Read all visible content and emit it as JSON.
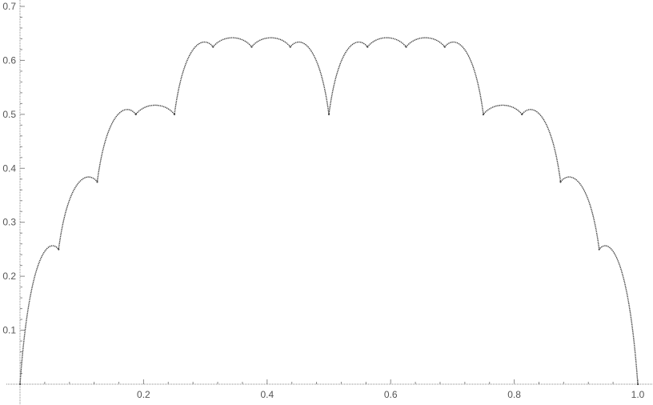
{
  "chart_data": {
    "type": "line",
    "title": "",
    "xlabel": "",
    "ylabel": "",
    "xlim": [
      0,
      1
    ],
    "ylim": [
      0,
      0.7
    ],
    "x_ticks": [
      0.2,
      0.4,
      0.6,
      0.8,
      1.0
    ],
    "x_tick_labels": [
      "0.2",
      "0.4",
      "0.6",
      "0.8",
      "1.0"
    ],
    "y_ticks": [
      0.1,
      0.2,
      0.3,
      0.4,
      0.5,
      0.6,
      0.7
    ],
    "y_tick_labels": [
      "0.1",
      "0.2",
      "0.3",
      "0.4",
      "0.5",
      "0.6",
      "0.7"
    ],
    "grid": false,
    "legend": "none",
    "series": [
      {
        "color": "#444444",
        "x": [
          0,
          0.0625,
          0.125,
          0.1875,
          0.25,
          0.3125,
          0.375,
          0.4375,
          0.5,
          0.5625,
          0.625,
          0.6875,
          0.75,
          0.8125,
          0.875,
          0.9375,
          1
        ],
        "y": [
          0,
          0.25,
          0.375,
          0.5,
          0.5,
          0.625,
          0.625,
          0.625,
          0.5,
          0.625,
          0.625,
          0.625,
          0.5,
          0.5,
          0.375,
          0.25,
          0
        ]
      }
    ]
  }
}
